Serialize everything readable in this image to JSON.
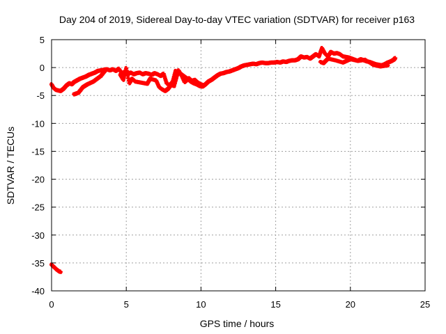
{
  "chart_data": {
    "type": "scatter",
    "title": "Day 204 of 2019, Sidereal Day-to-day VTEC variation (SDTVAR) for receiver p163",
    "xlabel": "GPS time / hours",
    "ylabel": "SDTVAR / TECUs",
    "xlim": [
      0,
      25
    ],
    "ylim": [
      -40,
      5
    ],
    "xticks": [
      0,
      5,
      10,
      15,
      20,
      25
    ],
    "yticks": [
      5,
      0,
      -5,
      -10,
      -15,
      -20,
      -25,
      -30,
      -35,
      -40
    ],
    "grid": true,
    "grid_style": "dotted",
    "marker_color": "#ff0000",
    "series": [
      {
        "name": "p163",
        "x": [
          0.0,
          0.1,
          0.2,
          0.3,
          0.45,
          0.6,
          0.8,
          1.0,
          1.2,
          1.35,
          1.5,
          1.7,
          1.9,
          2.1,
          2.3,
          2.5,
          2.7,
          2.9,
          3.1,
          3.3,
          3.5,
          3.7,
          3.9,
          4.1,
          4.3,
          4.5,
          4.7,
          4.9,
          5.1,
          5.3,
          5.5,
          5.7,
          5.9,
          6.1,
          6.3,
          6.5,
          6.7,
          6.9,
          7.1,
          7.3,
          7.5,
          7.7,
          7.9,
          8.1,
          8.3,
          8.5,
          8.7,
          8.9,
          9.1,
          9.3,
          9.5,
          9.7,
          9.9,
          10.1,
          10.3,
          10.5,
          10.7,
          10.9,
          11.1,
          11.3,
          11.5,
          11.7,
          11.9,
          12.1,
          12.3,
          12.5,
          12.7,
          12.9,
          13.1,
          13.3,
          13.5,
          13.7,
          13.9,
          14.1,
          14.3,
          14.5,
          14.7,
          14.9,
          15.1,
          15.3,
          15.5,
          15.7,
          15.9,
          16.1,
          16.3,
          16.5,
          16.7,
          16.9,
          17.1,
          17.3,
          17.5,
          17.7,
          17.9,
          18.1,
          18.3,
          18.5,
          18.7,
          18.9,
          19.1,
          19.3,
          19.5,
          19.7,
          19.9,
          20.1,
          20.3,
          20.5,
          20.7,
          20.9,
          21.1,
          21.3,
          21.5,
          21.7,
          21.9,
          22.1,
          22.3,
          22.5,
          22.7,
          22.9,
          23.0,
          1.5,
          1.8,
          2.1,
          2.4,
          2.8,
          3.3,
          3.6,
          4.6,
          4.8,
          5.0,
          5.2,
          5.4,
          5.6,
          6.0,
          6.4,
          6.6,
          7.0,
          7.2,
          7.4,
          7.6,
          7.8,
          8.0,
          8.2,
          8.5,
          8.7,
          8.9,
          9.2,
          9.4,
          9.6,
          9.8,
          10.0,
          10.2,
          18.0,
          18.2,
          18.5,
          19.0,
          19.5,
          20.0,
          20.5,
          21.0,
          21.5,
          22.0,
          22.5,
          0.0,
          0.1,
          0.2,
          0.3,
          0.4,
          0.5,
          0.6
        ],
        "y": [
          -3.0,
          -3.5,
          -3.8,
          -4.0,
          -4.1,
          -4.2,
          -3.8,
          -3.2,
          -2.8,
          -3.0,
          -2.6,
          -2.3,
          -2.0,
          -1.8,
          -1.6,
          -1.3,
          -1.1,
          -0.9,
          -0.6,
          -0.5,
          -0.4,
          -0.3,
          -0.5,
          -0.3,
          -0.6,
          -0.2,
          -1.0,
          -0.8,
          -1.1,
          -0.9,
          -1.2,
          -1.0,
          -0.9,
          -1.2,
          -1.0,
          -1.1,
          -1.3,
          -1.0,
          -1.2,
          -1.5,
          -1.1,
          -2.8,
          -3.2,
          -2.6,
          -0.6,
          -1.0,
          -1.2,
          -1.6,
          -2.0,
          -2.5,
          -2.8,
          -3.0,
          -3.3,
          -3.4,
          -3.0,
          -2.5,
          -2.2,
          -1.8,
          -1.4,
          -1.1,
          -1.0,
          -0.8,
          -0.7,
          -0.5,
          -0.3,
          -0.1,
          0.2,
          0.4,
          0.5,
          0.6,
          0.7,
          0.6,
          0.8,
          0.9,
          0.8,
          0.8,
          0.9,
          0.9,
          1.0,
          0.9,
          1.1,
          1.0,
          1.2,
          1.3,
          1.3,
          1.5,
          2.0,
          1.8,
          1.9,
          1.6,
          2.0,
          2.4,
          2.0,
          3.5,
          2.5,
          2.0,
          2.8,
          2.5,
          2.6,
          2.4,
          2.0,
          1.9,
          1.8,
          1.6,
          1.4,
          1.2,
          1.5,
          1.3,
          1.1,
          1.0,
          0.8,
          0.6,
          0.5,
          0.4,
          0.6,
          0.9,
          1.1,
          1.4,
          1.7,
          -4.8,
          -4.5,
          -3.5,
          -3.0,
          -2.5,
          -1.5,
          -0.5,
          -1.3,
          -2.2,
          -0.1,
          -2.8,
          -2.0,
          -2.5,
          -2.7,
          -2.9,
          -2.0,
          -2.3,
          -3.5,
          -3.9,
          -4.2,
          -3.8,
          -3.1,
          -3.3,
          -0.5,
          -1.4,
          -2.6,
          -1.9,
          -2.4,
          -2.2,
          -2.7,
          -3.0,
          -3.2,
          1.0,
          0.8,
          1.6,
          1.3,
          0.9,
          1.5,
          1.2,
          1.4,
          0.5,
          0.2,
          0.4,
          -35.3,
          -35.6,
          -35.8,
          -36.1,
          -36.3,
          -36.5,
          -36.6
        ]
      }
    ]
  }
}
